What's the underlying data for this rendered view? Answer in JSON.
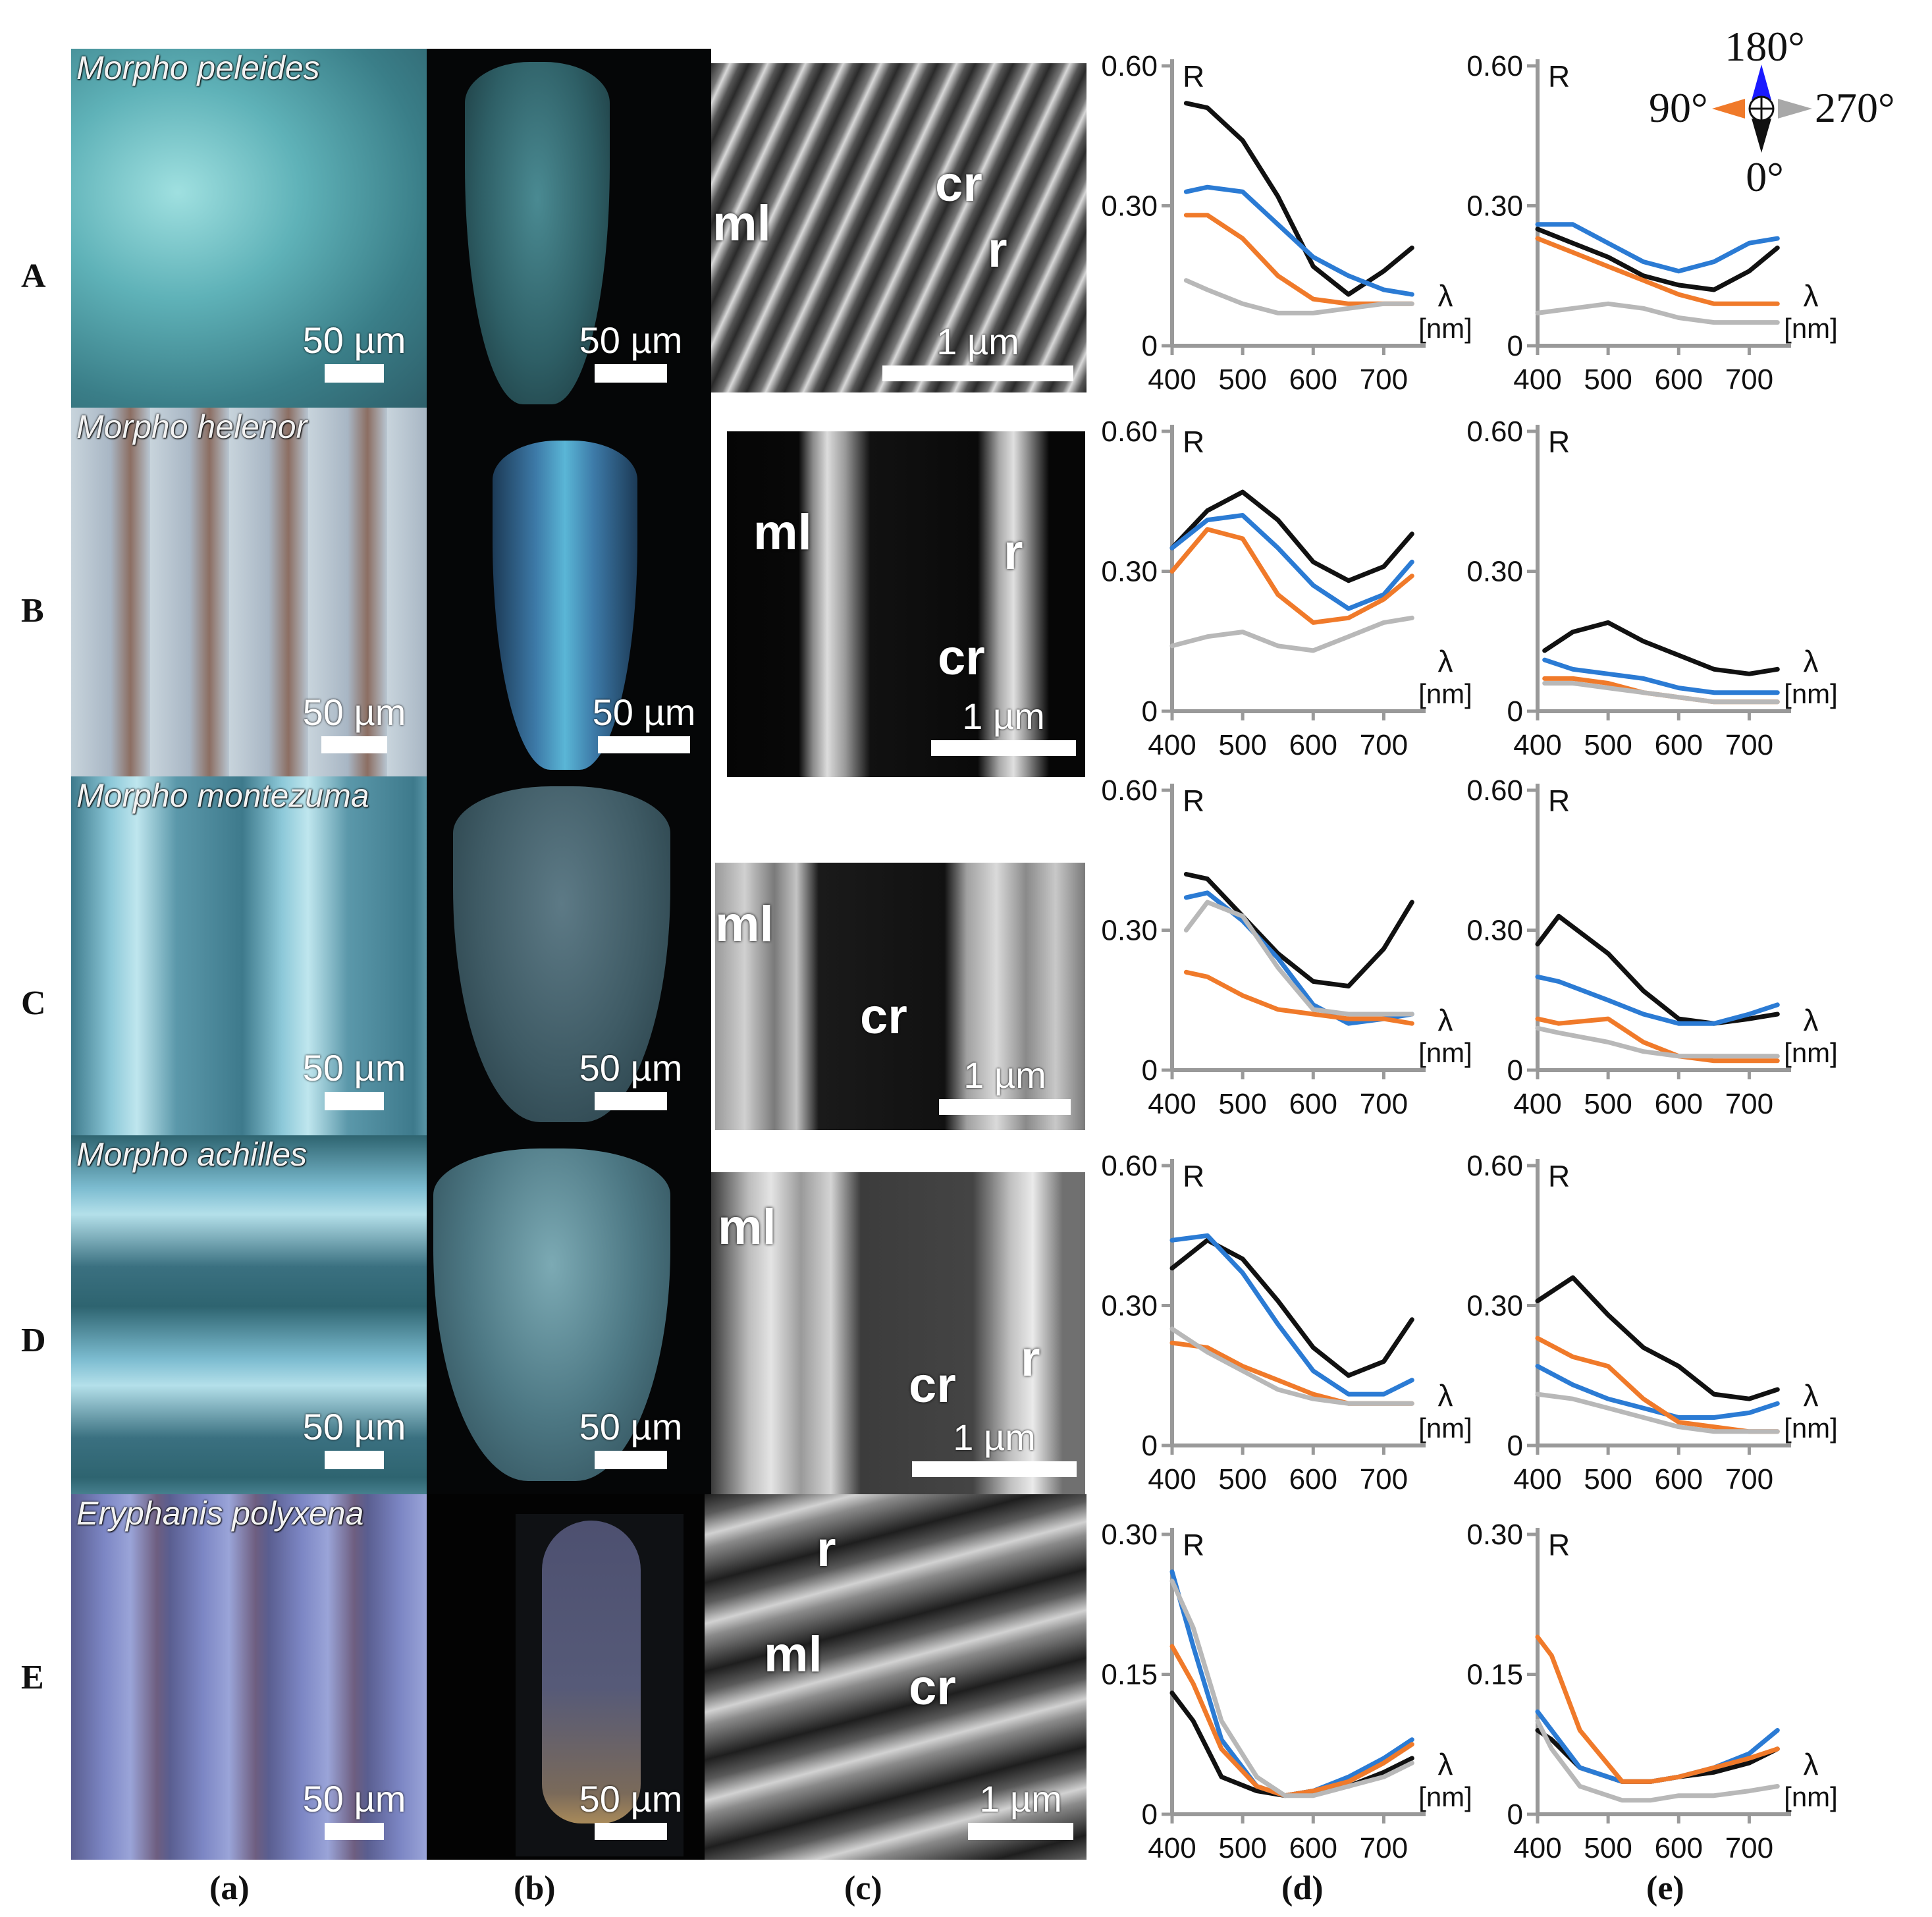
{
  "columns": [
    "(a)",
    "(b)",
    "(c)",
    "(d)",
    "(e)"
  ],
  "rows": [
    {
      "letter": "A",
      "species": "Morpho  peleides",
      "scale_a": "50 µm",
      "scale_b": "50 µm",
      "scale_c": "1 µm"
    },
    {
      "letter": "B",
      "species": "Morpho helenor",
      "scale_a": "50 µm",
      "scale_b": "50 µm",
      "scale_c": "1 µm"
    },
    {
      "letter": "C",
      "species": "Morpho montezuma",
      "scale_a": "50 µm",
      "scale_b": "50 µm",
      "scale_c": "1 µm"
    },
    {
      "letter": "D",
      "species": "Morpho achilles",
      "scale_a": "50 µm",
      "scale_b": "50 µm",
      "scale_c": "1 µm"
    },
    {
      "letter": "E",
      "species": "Eryphanis polyxena",
      "scale_a": "50 µm",
      "scale_b": "50 µm",
      "scale_c": "1 µm"
    }
  ],
  "sem_labels": {
    "ml": "ml",
    "cr": "cr",
    "r": "r"
  },
  "compass": {
    "top": "180°",
    "left": "90°",
    "right": "270°",
    "bottom": "0°",
    "colors": {
      "top": "#1a1aff",
      "left": "#f07a2a",
      "right": "#a8a8a8",
      "bottom": "#111111"
    }
  },
  "series_colors": {
    "black": "#111111",
    "blue": "#2b7bd4",
    "orange": "#f07a2a",
    "gray": "#b8b8b8"
  },
  "chart_data": [
    {
      "id": "A-d",
      "type": "line",
      "y_label": "R",
      "x_label": "λ",
      "x_unit": "[nm]",
      "x_ticks": [
        400,
        500,
        600,
        700
      ],
      "y_ticks": [
        0,
        0.3,
        0.6
      ],
      "y_tick_labels": [
        "0",
        "0.30",
        "0.60"
      ],
      "xlim": [
        400,
        750
      ],
      "ylim": [
        0,
        0.6
      ],
      "x": [
        420,
        450,
        500,
        550,
        600,
        650,
        700,
        740
      ],
      "series": [
        {
          "color": "black",
          "values": [
            0.52,
            0.51,
            0.44,
            0.32,
            0.17,
            0.11,
            0.16,
            0.21
          ]
        },
        {
          "color": "blue",
          "values": [
            0.33,
            0.34,
            0.33,
            0.26,
            0.19,
            0.15,
            0.12,
            0.11
          ]
        },
        {
          "color": "orange",
          "values": [
            0.28,
            0.28,
            0.23,
            0.15,
            0.1,
            0.09,
            0.09,
            0.09
          ]
        },
        {
          "color": "gray",
          "values": [
            0.14,
            0.12,
            0.09,
            0.07,
            0.07,
            0.08,
            0.09,
            0.09
          ]
        }
      ]
    },
    {
      "id": "A-e",
      "type": "line",
      "y_label": "R",
      "x_label": "λ",
      "x_unit": "[nm]",
      "x_ticks": [
        400,
        500,
        600,
        700
      ],
      "y_ticks": [
        0,
        0.3,
        0.6
      ],
      "y_tick_labels": [
        "0",
        "0.30",
        "0.60"
      ],
      "xlim": [
        400,
        750
      ],
      "ylim": [
        0,
        0.6
      ],
      "x": [
        400,
        450,
        500,
        550,
        600,
        650,
        700,
        740
      ],
      "series": [
        {
          "color": "black",
          "values": [
            0.25,
            0.22,
            0.19,
            0.15,
            0.13,
            0.12,
            0.16,
            0.21
          ]
        },
        {
          "color": "blue",
          "values": [
            0.26,
            0.26,
            0.22,
            0.18,
            0.16,
            0.18,
            0.22,
            0.23
          ]
        },
        {
          "color": "orange",
          "values": [
            0.23,
            0.2,
            0.17,
            0.14,
            0.11,
            0.09,
            0.09,
            0.09
          ]
        },
        {
          "color": "gray",
          "values": [
            0.07,
            0.08,
            0.09,
            0.08,
            0.06,
            0.05,
            0.05,
            0.05
          ]
        }
      ]
    },
    {
      "id": "B-d",
      "type": "line",
      "y_label": "R",
      "x_label": "λ",
      "x_unit": "[nm]",
      "x_ticks": [
        400,
        500,
        600,
        700
      ],
      "y_ticks": [
        0,
        0.3,
        0.6
      ],
      "y_tick_labels": [
        "0",
        "0.30",
        "0.60"
      ],
      "xlim": [
        400,
        750
      ],
      "ylim": [
        0,
        0.6
      ],
      "x": [
        400,
        450,
        500,
        550,
        600,
        650,
        700,
        740
      ],
      "series": [
        {
          "color": "black",
          "values": [
            0.35,
            0.43,
            0.47,
            0.41,
            0.32,
            0.28,
            0.31,
            0.38
          ]
        },
        {
          "color": "blue",
          "values": [
            0.35,
            0.41,
            0.42,
            0.35,
            0.27,
            0.22,
            0.25,
            0.32
          ]
        },
        {
          "color": "orange",
          "values": [
            0.3,
            0.39,
            0.37,
            0.25,
            0.19,
            0.2,
            0.24,
            0.29
          ]
        },
        {
          "color": "gray",
          "values": [
            0.14,
            0.16,
            0.17,
            0.14,
            0.13,
            0.16,
            0.19,
            0.2
          ]
        }
      ]
    },
    {
      "id": "B-e",
      "type": "line",
      "y_label": "R",
      "x_label": "λ",
      "x_unit": "[nm]",
      "x_ticks": [
        400,
        500,
        600,
        700
      ],
      "y_ticks": [
        0,
        0.3,
        0.6
      ],
      "y_tick_labels": [
        "0",
        "0.30",
        "0.60"
      ],
      "xlim": [
        400,
        750
      ],
      "ylim": [
        0,
        0.6
      ],
      "x": [
        410,
        450,
        500,
        550,
        600,
        650,
        700,
        740
      ],
      "series": [
        {
          "color": "black",
          "values": [
            0.13,
            0.17,
            0.19,
            0.15,
            0.12,
            0.09,
            0.08,
            0.09
          ]
        },
        {
          "color": "blue",
          "values": [
            0.11,
            0.09,
            0.08,
            0.07,
            0.05,
            0.04,
            0.04,
            0.04
          ]
        },
        {
          "color": "orange",
          "values": [
            0.07,
            0.07,
            0.06,
            0.04,
            0.03,
            0.02,
            0.02,
            0.02
          ]
        },
        {
          "color": "gray",
          "values": [
            0.06,
            0.06,
            0.05,
            0.04,
            0.03,
            0.02,
            0.02,
            0.02
          ]
        }
      ]
    },
    {
      "id": "C-d",
      "type": "line",
      "y_label": "R",
      "x_label": "λ",
      "x_unit": "[nm]",
      "x_ticks": [
        400,
        500,
        600,
        700
      ],
      "y_ticks": [
        0,
        0.3,
        0.6
      ],
      "y_tick_labels": [
        "0",
        "0.30",
        "0.60"
      ],
      "xlim": [
        400,
        750
      ],
      "ylim": [
        0,
        0.6
      ],
      "x": [
        420,
        450,
        500,
        550,
        600,
        650,
        700,
        740
      ],
      "series": [
        {
          "color": "black",
          "values": [
            0.42,
            0.41,
            0.33,
            0.25,
            0.19,
            0.18,
            0.26,
            0.36
          ]
        },
        {
          "color": "blue",
          "values": [
            0.37,
            0.38,
            0.32,
            0.24,
            0.14,
            0.1,
            0.11,
            0.12
          ]
        },
        {
          "color": "orange",
          "values": [
            0.21,
            0.2,
            0.16,
            0.13,
            0.12,
            0.11,
            0.11,
            0.1
          ]
        },
        {
          "color": "gray",
          "values": [
            0.3,
            0.36,
            0.33,
            0.22,
            0.13,
            0.12,
            0.12,
            0.12
          ]
        }
      ]
    },
    {
      "id": "C-e",
      "type": "line",
      "y_label": "R",
      "x_label": "λ",
      "x_unit": "[nm]",
      "x_ticks": [
        400,
        500,
        600,
        700
      ],
      "y_ticks": [
        0,
        0.3,
        0.6
      ],
      "y_tick_labels": [
        "0",
        "0.30",
        "0.60"
      ],
      "xlim": [
        400,
        750
      ],
      "ylim": [
        0,
        0.6
      ],
      "x": [
        400,
        430,
        500,
        550,
        600,
        650,
        700,
        740
      ],
      "series": [
        {
          "color": "black",
          "values": [
            0.27,
            0.33,
            0.25,
            0.17,
            0.11,
            0.1,
            0.11,
            0.12
          ]
        },
        {
          "color": "blue",
          "values": [
            0.2,
            0.19,
            0.15,
            0.12,
            0.1,
            0.1,
            0.12,
            0.14
          ]
        },
        {
          "color": "orange",
          "values": [
            0.11,
            0.1,
            0.11,
            0.06,
            0.03,
            0.02,
            0.02,
            0.02
          ]
        },
        {
          "color": "gray",
          "values": [
            0.09,
            0.08,
            0.06,
            0.04,
            0.03,
            0.03,
            0.03,
            0.03
          ]
        }
      ]
    },
    {
      "id": "D-d",
      "type": "line",
      "y_label": "R",
      "x_label": "λ",
      "x_unit": "[nm]",
      "x_ticks": [
        400,
        500,
        600,
        700
      ],
      "y_ticks": [
        0,
        0.3,
        0.6
      ],
      "y_tick_labels": [
        "0",
        "0.30",
        "0.60"
      ],
      "xlim": [
        400,
        750
      ],
      "ylim": [
        0,
        0.6
      ],
      "x": [
        400,
        450,
        500,
        550,
        600,
        650,
        700,
        740
      ],
      "series": [
        {
          "color": "black",
          "values": [
            0.38,
            0.44,
            0.4,
            0.31,
            0.21,
            0.15,
            0.18,
            0.27
          ]
        },
        {
          "color": "blue",
          "values": [
            0.44,
            0.45,
            0.37,
            0.26,
            0.16,
            0.11,
            0.11,
            0.14
          ]
        },
        {
          "color": "orange",
          "values": [
            0.22,
            0.21,
            0.17,
            0.14,
            0.11,
            0.09,
            0.09,
            0.09
          ]
        },
        {
          "color": "gray",
          "values": [
            0.25,
            0.2,
            0.16,
            0.12,
            0.1,
            0.09,
            0.09,
            0.09
          ]
        }
      ]
    },
    {
      "id": "D-e",
      "type": "line",
      "y_label": "R",
      "x_label": "λ",
      "x_unit": "[nm]",
      "x_ticks": [
        400,
        500,
        600,
        700
      ],
      "y_ticks": [
        0,
        0.3,
        0.6
      ],
      "y_tick_labels": [
        "0",
        "0.30",
        "0.60"
      ],
      "xlim": [
        400,
        750
      ],
      "ylim": [
        0,
        0.6
      ],
      "x": [
        400,
        450,
        500,
        550,
        600,
        650,
        700,
        740
      ],
      "series": [
        {
          "color": "black",
          "values": [
            0.31,
            0.36,
            0.28,
            0.21,
            0.17,
            0.11,
            0.1,
            0.12
          ]
        },
        {
          "color": "blue",
          "values": [
            0.17,
            0.13,
            0.1,
            0.08,
            0.06,
            0.06,
            0.07,
            0.09
          ]
        },
        {
          "color": "orange",
          "values": [
            0.23,
            0.19,
            0.17,
            0.1,
            0.05,
            0.04,
            0.03,
            0.03
          ]
        },
        {
          "color": "gray",
          "values": [
            0.11,
            0.1,
            0.08,
            0.06,
            0.04,
            0.03,
            0.03,
            0.03
          ]
        }
      ]
    },
    {
      "id": "E-d",
      "type": "line",
      "y_label": "R",
      "x_label": "λ",
      "x_unit": "[nm]",
      "x_ticks": [
        400,
        500,
        600,
        700
      ],
      "y_ticks": [
        0,
        0.15,
        0.3
      ],
      "y_tick_labels": [
        "0",
        "0.15",
        "0.30"
      ],
      "xlim": [
        400,
        750
      ],
      "ylim": [
        0,
        0.3
      ],
      "x": [
        400,
        430,
        470,
        520,
        560,
        600,
        650,
        700,
        740
      ],
      "series": [
        {
          "color": "black",
          "values": [
            0.13,
            0.1,
            0.04,
            0.025,
            0.02,
            0.025,
            0.03,
            0.045,
            0.06
          ]
        },
        {
          "color": "blue",
          "values": [
            0.26,
            0.18,
            0.08,
            0.03,
            0.02,
            0.025,
            0.04,
            0.06,
            0.08
          ]
        },
        {
          "color": "orange",
          "values": [
            0.18,
            0.14,
            0.07,
            0.03,
            0.02,
            0.025,
            0.035,
            0.055,
            0.075
          ]
        },
        {
          "color": "gray",
          "values": [
            0.25,
            0.2,
            0.1,
            0.04,
            0.02,
            0.02,
            0.03,
            0.04,
            0.055
          ]
        }
      ]
    },
    {
      "id": "E-e",
      "type": "line",
      "y_label": "R",
      "x_label": "λ",
      "x_unit": "[nm]",
      "x_ticks": [
        400,
        500,
        600,
        700
      ],
      "y_ticks": [
        0,
        0.15,
        0.3
      ],
      "y_tick_labels": [
        "0",
        "0.15",
        "0.30"
      ],
      "xlim": [
        400,
        750
      ],
      "ylim": [
        0,
        0.3
      ],
      "x": [
        400,
        420,
        460,
        520,
        560,
        600,
        650,
        700,
        740
      ],
      "series": [
        {
          "color": "black",
          "values": [
            0.09,
            0.08,
            0.05,
            0.035,
            0.035,
            0.04,
            0.045,
            0.055,
            0.07
          ]
        },
        {
          "color": "blue",
          "values": [
            0.11,
            0.09,
            0.05,
            0.035,
            0.035,
            0.04,
            0.05,
            0.065,
            0.09
          ]
        },
        {
          "color": "orange",
          "values": [
            0.19,
            0.17,
            0.09,
            0.035,
            0.035,
            0.04,
            0.05,
            0.06,
            0.07
          ]
        },
        {
          "color": "gray",
          "values": [
            0.1,
            0.07,
            0.03,
            0.015,
            0.015,
            0.02,
            0.02,
            0.025,
            0.03
          ]
        }
      ]
    }
  ]
}
